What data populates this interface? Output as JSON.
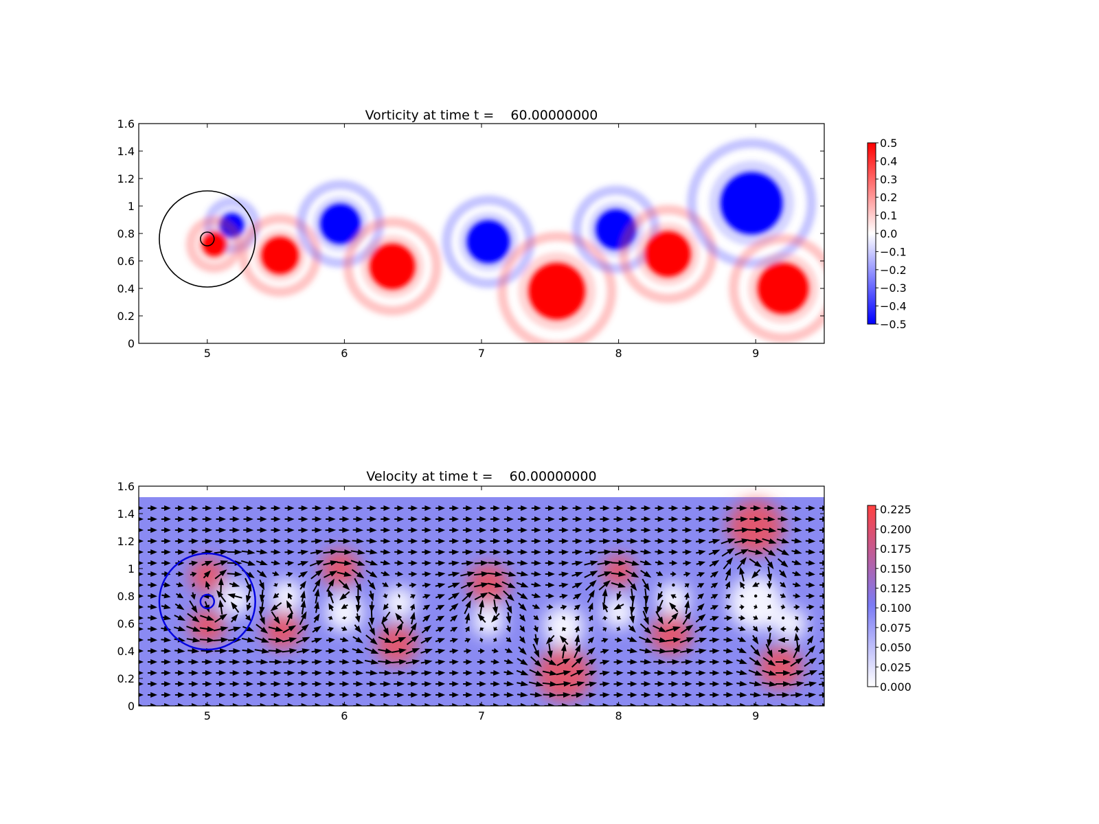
{
  "chart_data": [
    {
      "type": "heatmap",
      "title": "Vorticity at time t =    60.00000000",
      "xlabel": "",
      "ylabel": "",
      "xlim": [
        4.5,
        9.5
      ],
      "ylim": [
        0.0,
        1.6
      ],
      "x_ticks": [
        5,
        6,
        7,
        8,
        9
      ],
      "y_ticks": [
        0.0,
        0.2,
        0.4,
        0.6,
        0.8,
        1.0,
        1.2,
        1.4,
        1.6
      ],
      "grid": false,
      "colormap": [
        "#0000ff",
        "#ffffff",
        "#ff0000"
      ],
      "colorbar": {
        "min": -0.5,
        "max": 0.5,
        "ticks": [
          0.5,
          0.4,
          0.3,
          0.2,
          0.1,
          0.0,
          -0.1,
          -0.2,
          -0.3,
          -0.4,
          -0.5
        ]
      },
      "vortices": [
        {
          "x": 5.18,
          "y": 0.86,
          "value": -0.5,
          "r": 0.09
        },
        {
          "x": 5.05,
          "y": 0.72,
          "value": 0.5,
          "r": 0.09
        },
        {
          "x": 5.53,
          "y": 0.64,
          "value": 0.5,
          "r": 0.14
        },
        {
          "x": 5.97,
          "y": 0.87,
          "value": -0.5,
          "r": 0.15
        },
        {
          "x": 6.35,
          "y": 0.56,
          "value": 0.5,
          "r": 0.17
        },
        {
          "x": 7.05,
          "y": 0.74,
          "value": -0.5,
          "r": 0.16
        },
        {
          "x": 7.55,
          "y": 0.38,
          "value": 0.5,
          "r": 0.21
        },
        {
          "x": 7.98,
          "y": 0.83,
          "value": -0.5,
          "r": 0.15
        },
        {
          "x": 8.36,
          "y": 0.65,
          "value": 0.5,
          "r": 0.17
        },
        {
          "x": 8.97,
          "y": 1.02,
          "value": -0.5,
          "r": 0.23
        },
        {
          "x": 9.2,
          "y": 0.4,
          "value": 0.5,
          "r": 0.19
        }
      ],
      "circles": [
        {
          "cx": 5.0,
          "cy": 0.76,
          "r": 0.35,
          "color": "#000000"
        },
        {
          "cx": 5.0,
          "cy": 0.76,
          "r": 0.05,
          "color": "#000000"
        }
      ]
    },
    {
      "type": "heatmap",
      "title": "Velocity at time t =    60.00000000",
      "xlabel": "",
      "ylabel": "",
      "xlim": [
        4.5,
        9.5
      ],
      "ylim": [
        0.0,
        1.6
      ],
      "x_ticks": [
        5,
        6,
        7,
        8,
        9
      ],
      "y_ticks": [
        0.0,
        0.2,
        0.4,
        0.6,
        0.8,
        1.0,
        1.2,
        1.4,
        1.6
      ],
      "grid": false,
      "data_top": 1.52,
      "colormap": [
        "#ffffff",
        "#7b7bf5",
        "#ff4040"
      ],
      "colorbar": {
        "min": 0.0,
        "max": 0.23,
        "ticks": [
          0.225,
          0.2,
          0.175,
          0.15,
          0.125,
          0.1,
          0.075,
          0.05,
          0.025,
          0.0
        ],
        "tick_labels": [
          "0.225",
          "0.200",
          "0.175",
          "0.150",
          "0.125",
          "0.100",
          "0.075",
          "0.050",
          "0.025",
          "0.000"
        ]
      },
      "background_speed": 0.1,
      "fast_regions": [
        {
          "x": 5.0,
          "y": 0.95,
          "r": 0.13
        },
        {
          "x": 5.0,
          "y": 0.58,
          "r": 0.13
        },
        {
          "x": 5.55,
          "y": 0.55,
          "r": 0.14
        },
        {
          "x": 5.97,
          "y": 1.0,
          "r": 0.14
        },
        {
          "x": 6.38,
          "y": 0.45,
          "r": 0.15
        },
        {
          "x": 7.05,
          "y": 0.89,
          "r": 0.15
        },
        {
          "x": 7.6,
          "y": 0.23,
          "r": 0.2
        },
        {
          "x": 8.0,
          "y": 0.98,
          "r": 0.12
        },
        {
          "x": 8.38,
          "y": 0.52,
          "r": 0.15
        },
        {
          "x": 9.0,
          "y": 1.3,
          "r": 0.2
        },
        {
          "x": 9.18,
          "y": 0.28,
          "r": 0.16
        }
      ],
      "slow_regions": [
        {
          "x": 5.2,
          "y": 0.78,
          "r": 0.12
        },
        {
          "x": 5.58,
          "y": 0.8,
          "r": 0.12
        },
        {
          "x": 6.0,
          "y": 0.68,
          "r": 0.14
        },
        {
          "x": 6.4,
          "y": 0.75,
          "r": 0.12
        },
        {
          "x": 7.05,
          "y": 0.62,
          "r": 0.12
        },
        {
          "x": 7.6,
          "y": 0.58,
          "r": 0.15
        },
        {
          "x": 8.0,
          "y": 0.68,
          "r": 0.12
        },
        {
          "x": 8.4,
          "y": 0.78,
          "r": 0.12
        },
        {
          "x": 9.0,
          "y": 0.75,
          "r": 0.2
        },
        {
          "x": 9.25,
          "y": 0.6,
          "r": 0.12
        }
      ],
      "quiver_vortices": [
        {
          "x": 5.18,
          "y": 0.86,
          "sign": -1
        },
        {
          "x": 5.05,
          "y": 0.72,
          "sign": 1
        },
        {
          "x": 5.53,
          "y": 0.64,
          "sign": 1
        },
        {
          "x": 5.97,
          "y": 0.87,
          "sign": -1
        },
        {
          "x": 6.35,
          "y": 0.56,
          "sign": 1
        },
        {
          "x": 7.05,
          "y": 0.74,
          "sign": -1
        },
        {
          "x": 7.55,
          "y": 0.38,
          "sign": 1
        },
        {
          "x": 7.98,
          "y": 0.83,
          "sign": -1
        },
        {
          "x": 8.36,
          "y": 0.65,
          "sign": 1
        },
        {
          "x": 8.97,
          "y": 1.02,
          "sign": -1
        },
        {
          "x": 9.2,
          "y": 0.4,
          "sign": 1
        }
      ],
      "circles": [
        {
          "cx": 5.0,
          "cy": 0.76,
          "r": 0.35,
          "color": "#0000e0"
        },
        {
          "cx": 5.0,
          "cy": 0.76,
          "r": 0.05,
          "color": "#0000e0"
        }
      ]
    }
  ]
}
